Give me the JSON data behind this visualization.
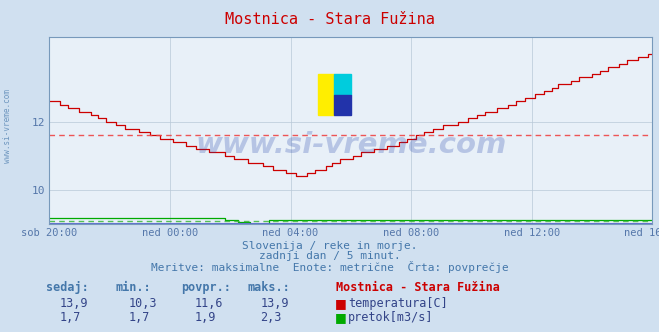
{
  "title": "Mostnica - Stara Fužina",
  "title_color": "#cc0000",
  "bg_color": "#d0e0f0",
  "plot_bg_color": "#e8f0f8",
  "grid_color": "#b8c8d8",
  "x_labels": [
    "sob 20:00",
    "ned 00:00",
    "ned 04:00",
    "ned 08:00",
    "ned 12:00",
    "ned 16:00"
  ],
  "x_ticks_n": 6,
  "total_points": 289,
  "y_min": 9.0,
  "y_max": 14.5,
  "y_ticks": [
    10,
    12
  ],
  "temp_avg": 11.6,
  "flow_avg_display": 9.08,
  "temp_color": "#cc0000",
  "flow_color": "#00aa00",
  "avg_temp_color": "#ee4444",
  "avg_flow_color": "#44bb44",
  "spine_color": "#7799bb",
  "footer_line1": "Slovenija / reke in morje.",
  "footer_line2": "zadnji dan / 5 minut.",
  "footer_line3": "Meritve: maksimalne  Enote: metrične  Črta: povprečje",
  "footer_color": "#4477aa",
  "sidebar_text": "www.si-vreme.com",
  "sidebar_color": "#4477aa",
  "watermark_text": "www.si-vreme.com",
  "watermark_color": "#2244aa",
  "watermark_alpha": 0.25,
  "table_headers": [
    "sedaj:",
    "min.:",
    "povpr.:",
    "maks.:"
  ],
  "table_header_color": "#4477aa",
  "table_values_temp": [
    "13,9",
    "10,3",
    "11,6",
    "13,9"
  ],
  "table_values_flow": [
    "1,7",
    "1,7",
    "1,9",
    "2,3"
  ],
  "table_value_color": "#334488",
  "legend_title": "Mostnica - Stara Fužina",
  "legend_title_color": "#cc0000",
  "legend_temp_label": "temperatura[C]",
  "legend_flow_label": "pretok[m3/s]",
  "baseline_color": "#5566cc",
  "tick_color": "#5577aa"
}
